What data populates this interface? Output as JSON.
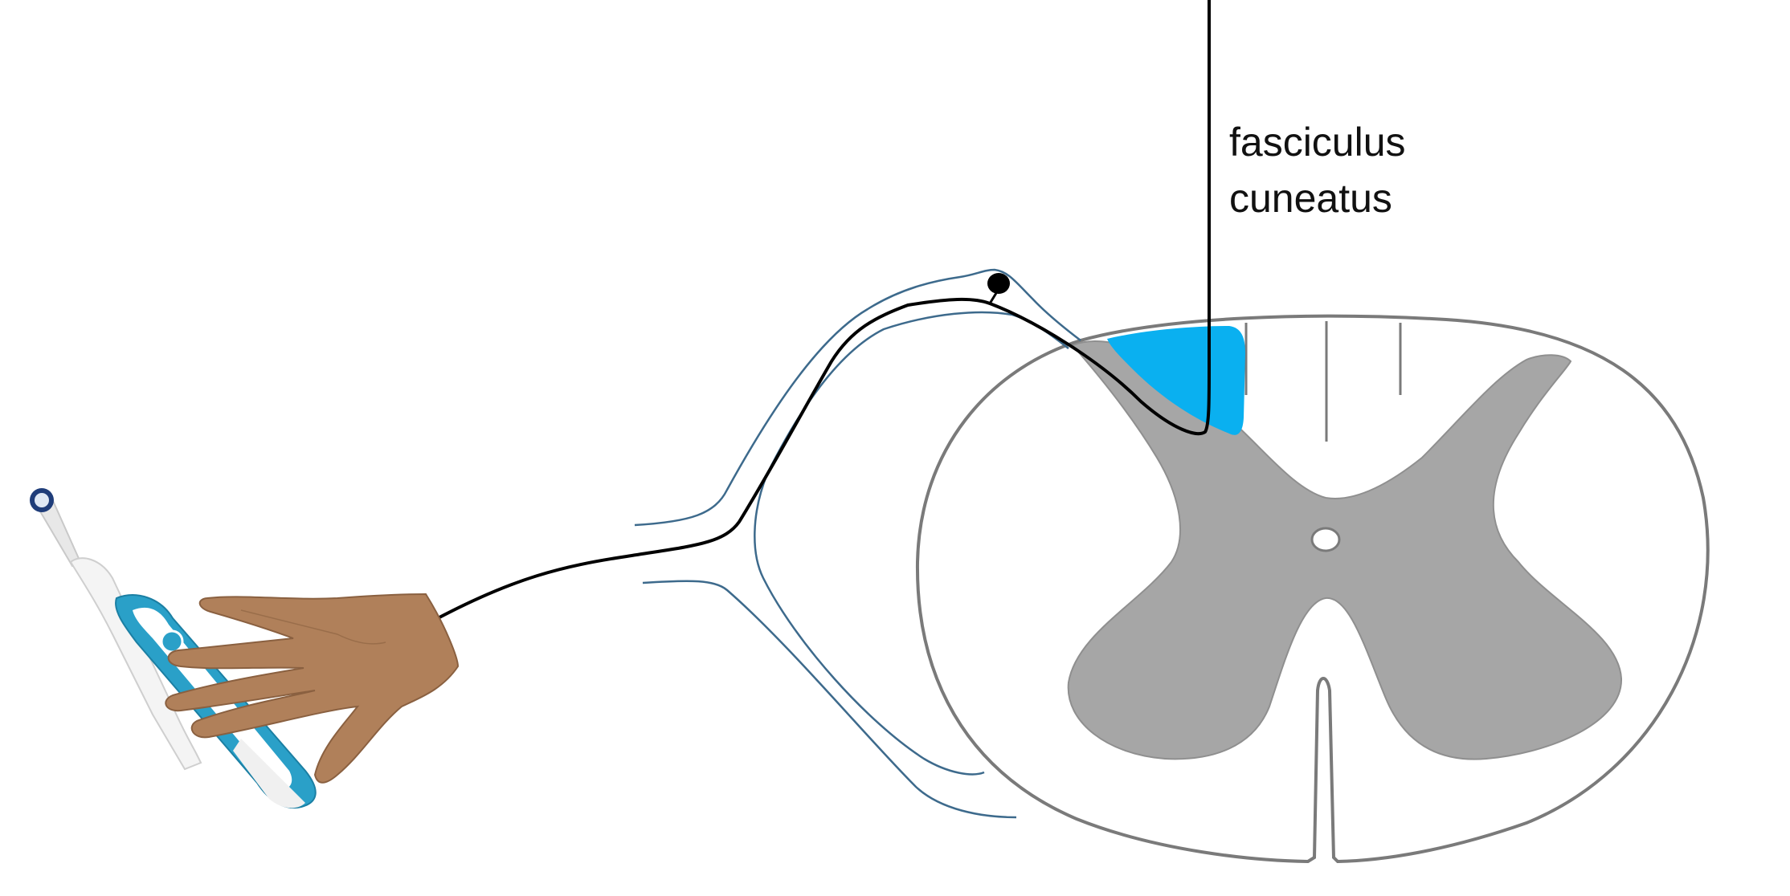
{
  "label": {
    "line1": "fasciculus",
    "line2": "cuneatus"
  },
  "colors": {
    "white_matter_outline": "#7a7a7a",
    "gray_matter": "#a6a6a6",
    "fasciculus_cuneatus": "#0ab0f0",
    "dorsal_root_outline": "#3d6a8c",
    "neuron_pathway": "#000000",
    "skin": "#b0805a",
    "toothbrush_accent": "#2aa0c8"
  },
  "icons": {
    "hand": "hand-icon",
    "toothbrush": "electric-toothbrush-icon",
    "ganglion": "dorsal-root-ganglion-icon"
  }
}
